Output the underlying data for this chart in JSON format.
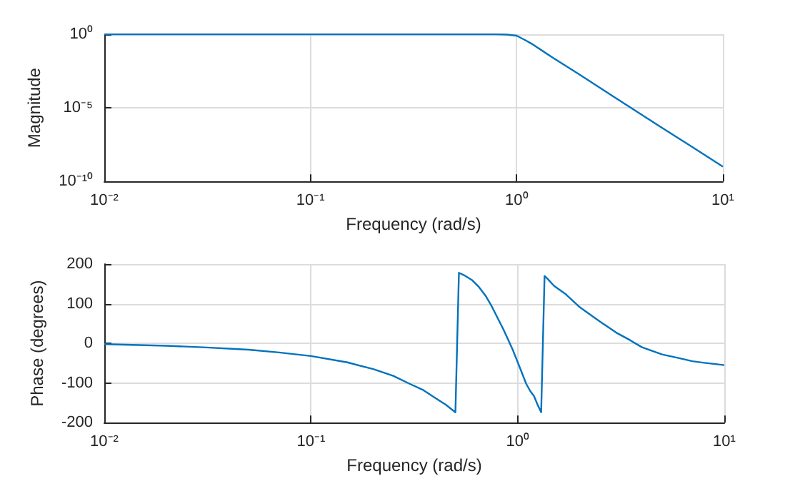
{
  "chart_data": [
    {
      "type": "line",
      "xlabel": "Frequency (rad/s)",
      "ylabel": "Magnitude",
      "log": "xy",
      "grid": true,
      "marker": "none",
      "line_style": "solid",
      "xlim": [
        0.01,
        10
      ],
      "ylim": [
        1e-10,
        1
      ],
      "xticks": [
        {
          "value": 0.01,
          "label": "10⁻²"
        },
        {
          "value": 0.1,
          "label": "10⁻¹"
        },
        {
          "value": 1,
          "label": "10⁰"
        },
        {
          "value": 10,
          "label": "10¹"
        }
      ],
      "yticks": [
        {
          "value": 1e-10,
          "label": "10⁻¹⁰"
        },
        {
          "value": 1e-05,
          "label": "10⁻⁵"
        },
        {
          "value": 1,
          "label": "10⁰"
        }
      ],
      "series": [
        {
          "color": "#0072bd",
          "x": [
            0.01,
            0.1,
            0.5,
            0.8,
            0.9,
            1,
            1.1,
            1.2,
            1.5,
            2,
            3,
            5,
            7,
            10
          ],
          "values": [
            1,
            1,
            1,
            1,
            0.95,
            0.8,
            0.4,
            0.2,
            0.025,
            0.002,
            5e-05,
            5e-07,
            2.5e-08,
            1e-09
          ]
        }
      ]
    },
    {
      "type": "line",
      "xlabel": "Frequency (rad/s)",
      "ylabel": "Phase (degrees)",
      "log": "x",
      "grid": true,
      "marker": "none",
      "line_style": "solid",
      "xlim": [
        0.01,
        10
      ],
      "ylim": [
        -200,
        200
      ],
      "xticks": [
        {
          "value": 0.01,
          "label": "10⁻²"
        },
        {
          "value": 0.1,
          "label": "10⁻¹"
        },
        {
          "value": 1,
          "label": "10⁰"
        },
        {
          "value": 10,
          "label": "10¹"
        }
      ],
      "yticks": [
        -200,
        -100,
        0,
        100,
        200
      ],
      "series": [
        {
          "color": "#0072bd",
          "x": [
            0.01,
            0.02,
            0.03,
            0.05,
            0.07,
            0.1,
            0.15,
            0.2,
            0.25,
            0.3,
            0.35,
            0.4,
            0.45,
            0.5,
            0.52,
            0.55,
            0.6,
            0.65,
            0.7,
            0.75,
            0.8,
            0.85,
            0.9,
            0.95,
            1,
            1.05,
            1.1,
            1.15,
            1.2,
            1.25,
            1.3,
            1.35,
            1.4,
            1.5,
            1.7,
            2,
            2.5,
            3,
            3.5,
            4,
            5,
            6,
            7,
            8,
            10
          ],
          "values": [
            -2,
            -6,
            -10,
            -16,
            -23,
            -32,
            -48,
            -65,
            -82,
            -102,
            -118,
            -138,
            -155,
            -174,
            178,
            172,
            160,
            142,
            120,
            93,
            64,
            37,
            9,
            -18,
            -47,
            -75,
            -102,
            -120,
            -133,
            -155,
            -174,
            170,
            162,
            145,
            125,
            91,
            55,
            27,
            8,
            -10,
            -28,
            -37,
            -45,
            -49,
            -55
          ]
        }
      ]
    }
  ]
}
